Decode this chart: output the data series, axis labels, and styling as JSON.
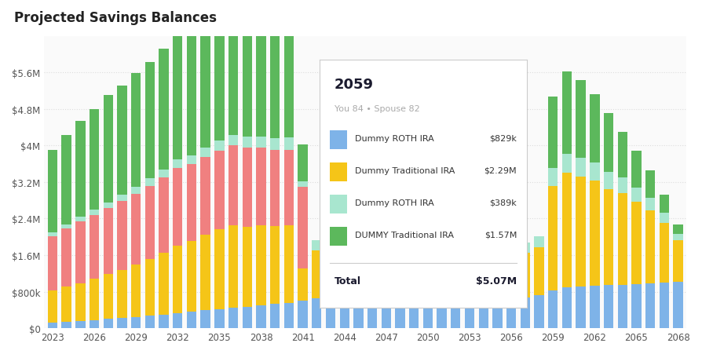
{
  "title": "Projected Savings Balances",
  "years": [
    2023,
    2024,
    2025,
    2026,
    2027,
    2028,
    2029,
    2030,
    2031,
    2032,
    2033,
    2034,
    2035,
    2036,
    2037,
    2038,
    2039,
    2040,
    2041,
    2042,
    2043,
    2044,
    2045,
    2046,
    2047,
    2048,
    2049,
    2050,
    2051,
    2052,
    2053,
    2054,
    2055,
    2056,
    2057,
    2058,
    2059,
    2060,
    2061,
    2062,
    2063,
    2064,
    2065,
    2066,
    2067,
    2068
  ],
  "series": {
    "roth_ira_you": [
      120,
      145,
      165,
      180,
      200,
      220,
      245,
      270,
      295,
      330,
      360,
      390,
      420,
      450,
      470,
      500,
      530,
      560,
      600,
      650,
      700,
      740,
      760,
      770,
      760,
      750,
      740,
      720,
      700,
      680,
      660,
      650,
      640,
      630,
      680,
      730,
      829,
      900,
      920,
      930,
      940,
      950,
      960,
      980,
      1000,
      1020
    ],
    "trad_ira_you": [
      700,
      760,
      820,
      900,
      980,
      1060,
      1150,
      1250,
      1350,
      1480,
      1550,
      1650,
      1750,
      1800,
      1750,
      1750,
      1700,
      1700,
      700,
      1050,
      1080,
      1100,
      1120,
      1130,
      1130,
      1120,
      1110,
      1090,
      1060,
      1030,
      1000,
      980,
      960,
      940,
      980,
      1050,
      2290,
      2500,
      2400,
      2300,
      2100,
      2000,
      1800,
      1600,
      1300,
      900
    ],
    "roth_ira_spouse": [
      80,
      90,
      100,
      110,
      120,
      135,
      145,
      160,
      170,
      185,
      195,
      210,
      220,
      230,
      240,
      250,
      255,
      260,
      120,
      230,
      240,
      250,
      255,
      260,
      260,
      255,
      250,
      245,
      235,
      225,
      215,
      210,
      205,
      200,
      210,
      225,
      389,
      420,
      410,
      395,
      375,
      350,
      325,
      280,
      230,
      150
    ],
    "trad_ira_spouse": [
      1800,
      1950,
      2100,
      2200,
      2350,
      2400,
      2500,
      2550,
      2650,
      2700,
      2800,
      2850,
      2900,
      2950,
      2900,
      2800,
      2700,
      2650,
      800,
      0,
      0,
      0,
      0,
      0,
      0,
      0,
      0,
      0,
      0,
      0,
      0,
      0,
      0,
      0,
      0,
      0,
      1570,
      1800,
      1700,
      1500,
      1300,
      1000,
      800,
      600,
      400,
      200
    ],
    "red_you": [
      1200,
      1280,
      1350,
      1400,
      1450,
      1500,
      1550,
      1600,
      1650,
      1700,
      1680,
      1700,
      1720,
      1750,
      1730,
      1700,
      1680,
      1650,
      1800,
      0,
      0,
      0,
      0,
      0,
      0,
      0,
      0,
      0,
      0,
      0,
      0,
      0,
      0,
      0,
      0,
      0,
      0,
      0,
      0,
      0,
      0,
      0,
      0,
      0,
      0,
      0
    ]
  },
  "colors": {
    "roth_ira_you": "#7EB3E8",
    "trad_ira_you": "#F5C518",
    "roth_ira_spouse": "#A8E6CF",
    "trad_ira_spouse": "#5CB85C",
    "red_you": "#F08080"
  },
  "tooltip_year": "2059",
  "tooltip_subtitle": "You 84 • Spouse 82",
  "tooltip_items": [
    {
      "label": "Dummy ROTH IRA",
      "color": "#7EB3E8",
      "value": "$829k"
    },
    {
      "label": "Dummy Traditional IRA",
      "color": "#F5C518",
      "value": "$2.29M"
    },
    {
      "label": "Dummy ROTH IRA",
      "color": "#A8E6CF",
      "value": "$389k"
    },
    {
      "label": "DUMMY Traditional IRA",
      "color": "#5CB85C",
      "value": "$1.57M"
    }
  ],
  "tooltip_total": "$5.07M",
  "yticks": [
    0,
    800000,
    1600000,
    2400000,
    3200000,
    4000000,
    4800000,
    5600000
  ],
  "ytick_labels": [
    "$0",
    "$800k",
    "$1.6M",
    "$2.4M",
    "$3.2M",
    "$4M",
    "$4.8M",
    "$5.6M"
  ],
  "bg_color": "#FFFFFF",
  "plot_bg": "#FAFAFA",
  "grid_color": "#DDDDDD",
  "bar_width": 0.7
}
